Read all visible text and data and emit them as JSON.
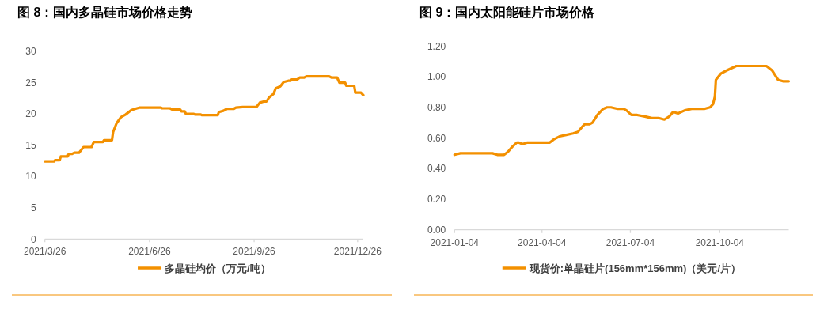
{
  "chart_data": [
    {
      "type": "line",
      "title": "图 8：国内多晶硅市场价格走势",
      "x": [
        "2021-03-26",
        "2021-04-03",
        "2021-04-04",
        "2021-04-08",
        "2021-04-09",
        "2021-04-15",
        "2021-04-16",
        "2021-04-19",
        "2021-04-21",
        "2021-04-25",
        "2021-04-29",
        "2021-05-06",
        "2021-05-08",
        "2021-05-16",
        "2021-05-17",
        "2021-05-24",
        "2021-05-25",
        "2021-05-28",
        "2021-06-01",
        "2021-06-05",
        "2021-06-10",
        "2021-06-15",
        "2021-06-17",
        "2021-07-06",
        "2021-07-07",
        "2021-07-14",
        "2021-07-16",
        "2021-07-23",
        "2021-07-24",
        "2021-07-27",
        "2021-07-28",
        "2021-08-04",
        "2021-08-05",
        "2021-08-10",
        "2021-08-11",
        "2021-08-25",
        "2021-08-26",
        "2021-08-30",
        "2021-09-02",
        "2021-09-08",
        "2021-09-10",
        "2021-09-16",
        "2021-09-28",
        "2021-10-01",
        "2021-10-05",
        "2021-10-07",
        "2021-10-09",
        "2021-10-13",
        "2021-10-15",
        "2021-10-19",
        "2021-10-22",
        "2021-10-26",
        "2021-10-28",
        "2021-10-29",
        "2021-11-03",
        "2021-11-05",
        "2021-11-09",
        "2021-11-11",
        "2021-12-01",
        "2021-12-03",
        "2021-12-08",
        "2021-12-10",
        "2021-12-15",
        "2021-12-16",
        "2021-12-23",
        "2021-12-24",
        "2021-12-29",
        "2021-12-31"
      ],
      "series": [
        {
          "name": "多晶硅均价（万元/吨）",
          "color": "#f39000",
          "values": [
            12.4,
            12.4,
            12.6,
            12.6,
            13.2,
            13.2,
            13.6,
            13.6,
            13.8,
            13.8,
            14.7,
            14.7,
            15.5,
            15.5,
            15.8,
            15.8,
            17.1,
            18.5,
            19.5,
            19.9,
            20.6,
            20.9,
            21.0,
            21.0,
            20.9,
            20.9,
            20.7,
            20.7,
            20.4,
            20.4,
            20.0,
            20.0,
            19.9,
            19.9,
            19.8,
            19.8,
            20.3,
            20.5,
            20.8,
            20.8,
            21.0,
            21.1,
            21.1,
            21.8,
            22.0,
            22.0,
            22.6,
            23.2,
            24.1,
            24.4,
            25.1,
            25.3,
            25.3,
            25.5,
            25.5,
            25.8,
            25.8,
            26.0,
            26.0,
            25.8,
            25.8,
            25.0,
            25.0,
            24.5,
            24.5,
            23.4,
            23.4,
            23.0
          ]
        }
      ],
      "xlim": [
        "2021-03-26",
        "2021-12-31"
      ],
      "xticks": [
        {
          "value": "2021-03-26",
          "label": "2021/3/26"
        },
        {
          "value": "2021-06-26",
          "label": "2021/6/26"
        },
        {
          "value": "2021-09-26",
          "label": "2021/9/26"
        },
        {
          "value": "2021-12-26",
          "label": "2021/12/26"
        }
      ],
      "ylim": [
        0,
        30
      ],
      "yticks": [
        0,
        5,
        10,
        15,
        20,
        25,
        30
      ],
      "legend": "bottom"
    },
    {
      "type": "line",
      "title": "图 9：国内太阳能硅片市场价格",
      "x": [
        "2021-01-04",
        "2021-01-10",
        "2021-01-26",
        "2021-02-03",
        "2021-02-12",
        "2021-02-17",
        "2021-02-24",
        "2021-02-28",
        "2021-03-04",
        "2021-03-09",
        "2021-03-11",
        "2021-03-15",
        "2021-03-20",
        "2021-03-24",
        "2021-04-02",
        "2021-04-12",
        "2021-04-16",
        "2021-04-22",
        "2021-04-29",
        "2021-05-06",
        "2021-05-11",
        "2021-05-15",
        "2021-05-18",
        "2021-05-23",
        "2021-05-26",
        "2021-05-31",
        "2021-06-06",
        "2021-06-10",
        "2021-06-14",
        "2021-06-21",
        "2021-06-27",
        "2021-06-30",
        "2021-07-05",
        "2021-07-11",
        "2021-07-19",
        "2021-07-26",
        "2021-08-02",
        "2021-08-08",
        "2021-08-13",
        "2021-08-17",
        "2021-08-22",
        "2021-08-29",
        "2021-09-05",
        "2021-09-12",
        "2021-09-18",
        "2021-09-24",
        "2021-09-27",
        "2021-09-29",
        "2021-09-30",
        "2021-10-05",
        "2021-10-11",
        "2021-10-21",
        "2021-10-28",
        "2021-11-02",
        "2021-11-08",
        "2021-11-16",
        "2021-11-21",
        "2021-11-27",
        "2021-12-03",
        "2021-12-08",
        "2021-12-14"
      ],
      "series": [
        {
          "name": "现货价:单晶硅片(156mm*156mm)（美元/片）",
          "color": "#f39000",
          "values": [
            0.49,
            0.5,
            0.5,
            0.5,
            0.5,
            0.49,
            0.49,
            0.51,
            0.54,
            0.57,
            0.57,
            0.56,
            0.57,
            0.57,
            0.57,
            0.57,
            0.59,
            0.61,
            0.62,
            0.63,
            0.64,
            0.67,
            0.69,
            0.69,
            0.7,
            0.75,
            0.79,
            0.8,
            0.8,
            0.79,
            0.79,
            0.78,
            0.75,
            0.75,
            0.74,
            0.73,
            0.73,
            0.72,
            0.74,
            0.77,
            0.76,
            0.78,
            0.79,
            0.79,
            0.79,
            0.8,
            0.82,
            0.87,
            0.98,
            1.02,
            1.04,
            1.07,
            1.07,
            1.07,
            1.07,
            1.07,
            1.07,
            1.04,
            0.98,
            0.97,
            0.97
          ]
        }
      ],
      "xlim": [
        "2021-01-04",
        "2021-12-14"
      ],
      "xticks": [
        "2021-01-04",
        "2021-04-04",
        "2021-07-04",
        "2021-10-04"
      ],
      "ylim": [
        0,
        1.2
      ],
      "yticks": [
        {
          "value": 0,
          "label": "0.00"
        },
        {
          "value": 0.2,
          "label": "0.20"
        },
        {
          "value": 0.4,
          "label": "0.40"
        },
        {
          "value": 0.6,
          "label": "0.60"
        },
        {
          "value": 0.8,
          "label": "0.80"
        },
        {
          "value": 1.0,
          "label": "1.00"
        },
        {
          "value": 1.2,
          "label": "1.20"
        }
      ],
      "legend": "bottom"
    }
  ]
}
